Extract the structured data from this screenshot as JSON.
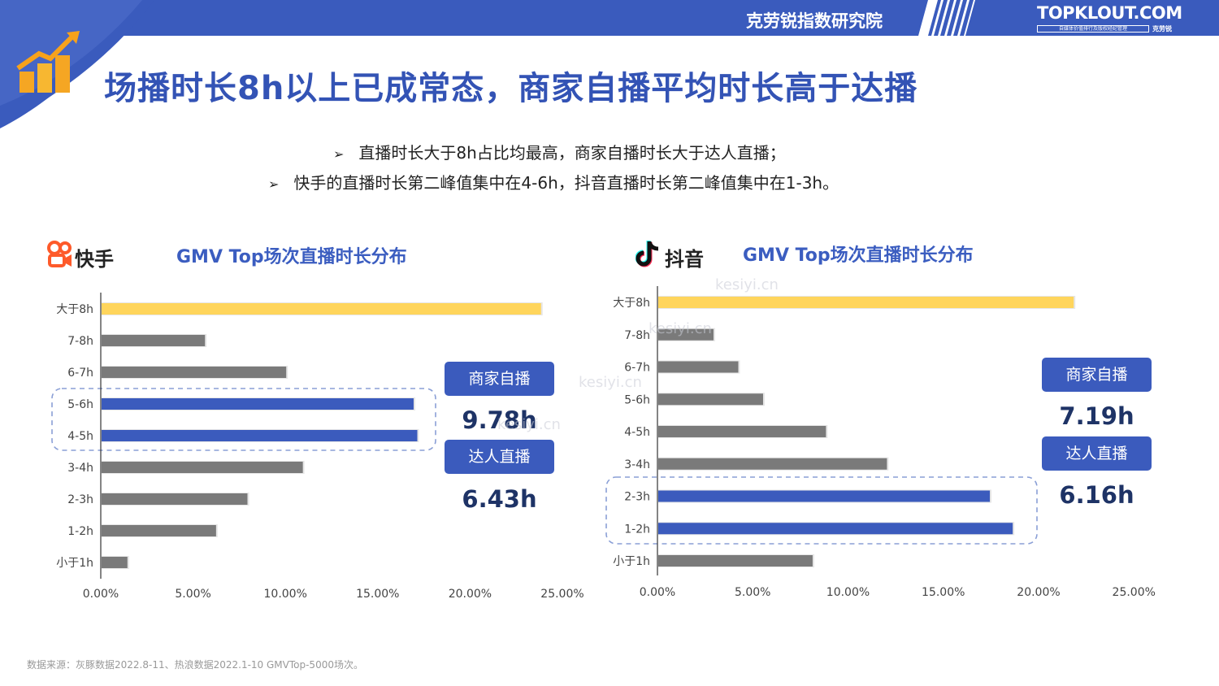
{
  "header": {
    "institute": "克劳锐指数研究院",
    "brand": "TOPKLOUT.COM",
    "brand_sub": "自媒体价值排行及版权经纪管理",
    "brand_sub2": "克劳锐"
  },
  "title": "场播时长8h以上已成常态，商家自播平均时长高于达播",
  "bullets": [
    "直播时长大于8h占比均最高，商家自播时长大于达人直播；",
    "快手的直播时长第二峰值集中在4-6h，抖音直播时长第二峰值集中在1-3h。"
  ],
  "watermark": "kesiyi.cn",
  "colors": {
    "primary": "#3b5bbd",
    "highlight": "#ffd55c",
    "bar": "#7a7a7a",
    "kuaishou": "#fe5a2a"
  },
  "kuaishou": {
    "platform": "快手",
    "badges": [
      {
        "label": "商家自播",
        "value": "9.78h"
      },
      {
        "label": "达人直播",
        "value": "6.43h"
      }
    ]
  },
  "douyin": {
    "platform": "抖音",
    "badges": [
      {
        "label": "商家自播",
        "value": "7.19h"
      },
      {
        "label": "达人直播",
        "value": "6.16h"
      }
    ]
  },
  "chart_data": [
    {
      "type": "bar",
      "orientation": "horizontal",
      "title": "GMV Top场次直播时长分布",
      "categories": [
        "大于8h",
        "7-8h",
        "6-7h",
        "5-6h",
        "4-5h",
        "3-4h",
        "2-3h",
        "1-2h",
        "小于1h"
      ],
      "values": [
        23.8,
        5.6,
        10.0,
        16.9,
        17.1,
        10.9,
        7.9,
        6.2,
        1.4
      ],
      "highlight": {
        "大于8h": "yellow",
        "5-6h": "blue",
        "4-5h": "blue"
      },
      "xlim": [
        0,
        25
      ],
      "xticks": [
        "0.00%",
        "5.00%",
        "10.00%",
        "15.00%",
        "20.00%",
        "25.00%"
      ]
    },
    {
      "type": "bar",
      "orientation": "horizontal",
      "title": "GMV Top场次直播时长分布",
      "categories": [
        "大于8h",
        "7-8h",
        "6-7h",
        "5-6h",
        "4-5h",
        "3-4h",
        "2-3h",
        "1-2h",
        "小于1h"
      ],
      "values": [
        21.8,
        2.9,
        4.2,
        5.5,
        8.8,
        12.0,
        17.4,
        18.6,
        8.1
      ],
      "highlight": {
        "大于8h": "yellow",
        "2-3h": "blue",
        "1-2h": "blue"
      },
      "xlim": [
        0,
        25
      ],
      "xticks": [
        "0.00%",
        "5.00%",
        "10.00%",
        "15.00%",
        "20.00%",
        "25.00%"
      ]
    }
  ],
  "source": "数据来源：灰豚数据2022.8-11、热浪数据2022.1-10 GMVTop-5000场次。"
}
